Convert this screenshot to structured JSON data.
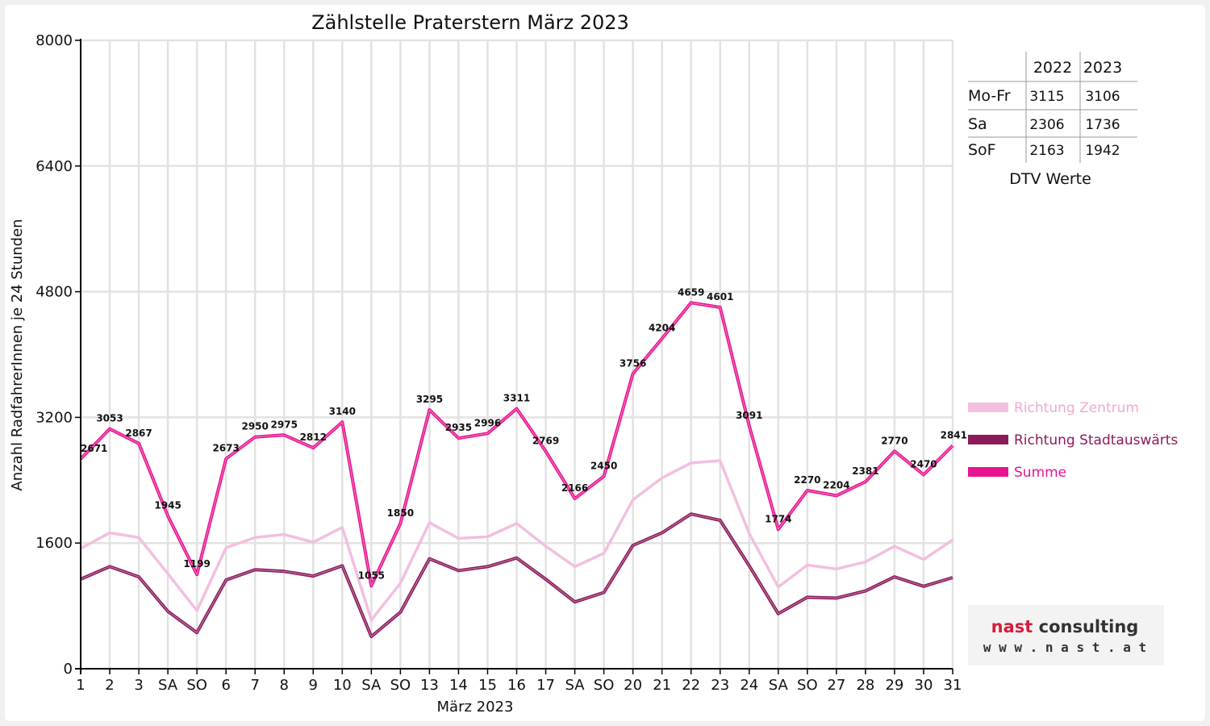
{
  "chart_data": {
    "type": "line",
    "title": "Zählstelle Praterstern März 2023",
    "xlabel": "März 2023",
    "ylabel": "Anzahl RadfahrerInnen je 24 Stunden",
    "ylim": [
      0,
      8000
    ],
    "yticks": [
      "0",
      "1600",
      "3200",
      "4800",
      "6400",
      "8000"
    ],
    "grid": true,
    "legend_position": "right",
    "categories": [
      "1",
      "2",
      "3",
      "SA",
      "SO",
      "6",
      "7",
      "8",
      "9",
      "10",
      "SA",
      "SO",
      "13",
      "14",
      "15",
      "16",
      "17",
      "SA",
      "SO",
      "20",
      "21",
      "22",
      "23",
      "24",
      "SA",
      "SO",
      "27",
      "28",
      "29",
      "30",
      "31"
    ],
    "red_categories": [
      4,
      11,
      18,
      25
    ],
    "series": [
      {
        "name": "Richtung Zentrum",
        "color": "#f2bfe0",
        "values": [
          1530,
          1730,
          1670,
          1210,
          740,
          1540,
          1670,
          1710,
          1610,
          1800,
          620,
          1090,
          1860,
          1660,
          1680,
          1850,
          1560,
          1300,
          1470,
          2150,
          2430,
          2620,
          2650,
          1720,
          1040,
          1320,
          1270,
          1360,
          1560,
          1390,
          1640
        ]
      },
      {
        "name": "Richtung Stadtauswärts",
        "color": "#8b1a5a",
        "values": [
          1140,
          1300,
          1170,
          730,
          460,
          1130,
          1260,
          1240,
          1180,
          1310,
          410,
          720,
          1400,
          1250,
          1300,
          1410,
          1140,
          850,
          970,
          1570,
          1730,
          1970,
          1890,
          1310,
          700,
          910,
          900,
          990,
          1170,
          1050,
          1160
        ]
      },
      {
        "name": "Summe",
        "color": "#e8148f",
        "values": [
          2671,
          3053,
          2867,
          1945,
          1199,
          2673,
          2950,
          2975,
          2812,
          3140,
          1055,
          1850,
          3295,
          2935,
          2996,
          3311,
          2769,
          2166,
          2450,
          3756,
          4204,
          4659,
          4601,
          3091,
          1774,
          2270,
          2204,
          2381,
          2770,
          2470,
          2841
        ]
      }
    ],
    "data_labels": [
      "2671",
      "3053",
      "2867",
      "1945",
      "1199",
      "2673",
      "2950",
      "2975",
      "2812",
      "3140",
      "1055",
      "1850",
      "3295",
      "2935",
      "2996",
      "3311",
      "2769",
      "2166",
      "2450",
      "3756",
      "4204",
      "4659",
      "4601",
      "3091",
      "1774",
      "2270",
      "2204",
      "2381",
      "2770",
      "2470",
      "2841"
    ]
  },
  "dtv_table": {
    "years": [
      "2022",
      "2023"
    ],
    "rows": [
      {
        "label": "Mo-Fr",
        "v2022": "3115",
        "v2023": "3106"
      },
      {
        "label": "Sa",
        "v2022": "2306",
        "v2023": "1736"
      },
      {
        "label": "SoF",
        "v2022": "2163",
        "v2023": "1942"
      }
    ],
    "caption": "DTV Werte"
  },
  "logo": {
    "brand": "nast consulting",
    "url": "w w w . n a s t . a t"
  }
}
